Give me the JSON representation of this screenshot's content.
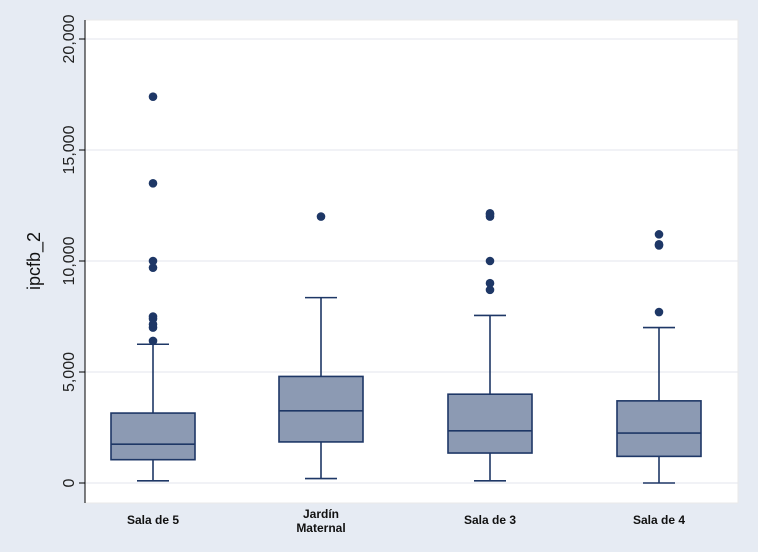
{
  "chart_data": {
    "type": "box",
    "ylabel": "ipcfb_2",
    "ylim": [
      0,
      20000
    ],
    "yticks": [
      0,
      5000,
      10000,
      15000,
      20000
    ],
    "ytick_labels": [
      "0",
      "5,000",
      "10,000",
      "15,000",
      "20,000"
    ],
    "grid": true,
    "box_color": "#8c9ab3",
    "line_color": "#1e3766",
    "categories": [
      {
        "label": [
          "Sala de 5"
        ],
        "whisker_low": 100,
        "q1": 1050,
        "median": 1750,
        "q3": 3150,
        "whisker_high": 6250,
        "outliers": [
          6400,
          7000,
          7150,
          7400,
          7500,
          9700,
          10000,
          13500,
          17400
        ]
      },
      {
        "label": [
          "Jardín",
          "Maternal"
        ],
        "whisker_low": 200,
        "q1": 1850,
        "median": 3250,
        "q3": 4800,
        "whisker_high": 8350,
        "outliers": [
          12000
        ]
      },
      {
        "label": [
          "Sala de 3"
        ],
        "whisker_low": 100,
        "q1": 1350,
        "median": 2350,
        "q3": 4000,
        "whisker_high": 7550,
        "outliers": [
          8700,
          9000,
          10000,
          12000,
          12100,
          12150
        ]
      },
      {
        "label": [
          "Sala de 4"
        ],
        "whisker_low": 0,
        "q1": 1200,
        "median": 2250,
        "q3": 3700,
        "whisker_high": 7000,
        "outliers": [
          7700,
          10700,
          10750,
          11200
        ]
      }
    ]
  }
}
